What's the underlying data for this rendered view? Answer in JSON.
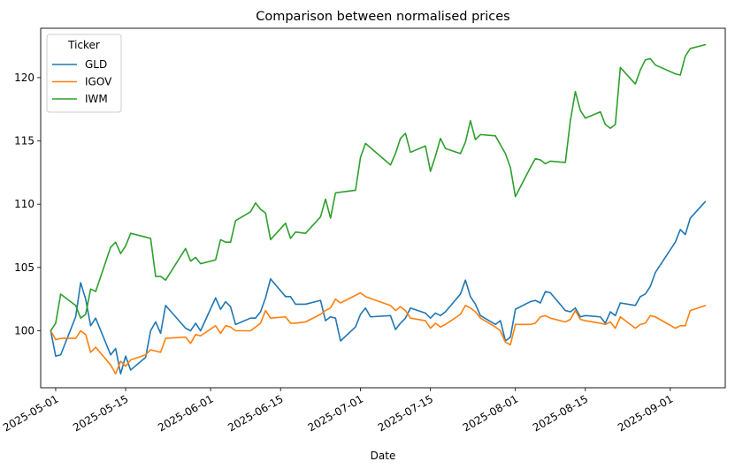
{
  "chart_data": {
    "type": "line",
    "title": "Comparison between normalised prices",
    "xlabel": "Date",
    "ylabel": "",
    "ylim": [
      95.5,
      123.9
    ],
    "xlim": [
      "2025-04-28",
      "2025-09-12"
    ],
    "yticks": [
      100,
      105,
      110,
      115,
      120
    ],
    "xticks": [
      "2025-05-01",
      "2025-05-15",
      "2025-06-01",
      "2025-06-15",
      "2025-07-01",
      "2025-07-15",
      "2025-08-01",
      "2025-08-15",
      "2025-09-01"
    ],
    "grid": false,
    "legend": {
      "title": "Ticker",
      "position": "upper-left"
    },
    "series": [
      {
        "name": "GLD",
        "color": "#1f77b4",
        "points": [
          [
            "2025-04-30",
            100.0
          ],
          [
            "2025-05-01",
            98.0
          ],
          [
            "2025-05-02",
            98.1
          ],
          [
            "2025-05-05",
            101.1
          ],
          [
            "2025-05-06",
            103.8
          ],
          [
            "2025-05-07",
            102.5
          ],
          [
            "2025-05-08",
            100.4
          ],
          [
            "2025-05-09",
            101.0
          ],
          [
            "2025-05-12",
            98.1
          ],
          [
            "2025-05-13",
            98.6
          ],
          [
            "2025-05-14",
            96.6
          ],
          [
            "2025-05-15",
            98.0
          ],
          [
            "2025-05-16",
            96.9
          ],
          [
            "2025-05-19",
            97.9
          ],
          [
            "2025-05-20",
            100.0
          ],
          [
            "2025-05-21",
            100.7
          ],
          [
            "2025-05-22",
            99.8
          ],
          [
            "2025-05-23",
            102.0
          ],
          [
            "2025-05-27",
            100.2
          ],
          [
            "2025-05-28",
            100.0
          ],
          [
            "2025-05-29",
            100.6
          ],
          [
            "2025-05-30",
            100.0
          ],
          [
            "2025-06-02",
            102.6
          ],
          [
            "2025-06-03",
            101.7
          ],
          [
            "2025-06-04",
            102.3
          ],
          [
            "2025-06-05",
            101.9
          ],
          [
            "2025-06-06",
            100.5
          ],
          [
            "2025-06-09",
            101.0
          ],
          [
            "2025-06-10",
            101.0
          ],
          [
            "2025-06-11",
            101.5
          ],
          [
            "2025-06-12",
            102.6
          ],
          [
            "2025-06-13",
            104.1
          ],
          [
            "2025-06-16",
            102.7
          ],
          [
            "2025-06-17",
            102.7
          ],
          [
            "2025-06-18",
            102.1
          ],
          [
            "2025-06-20",
            102.1
          ],
          [
            "2025-06-23",
            102.4
          ],
          [
            "2025-06-24",
            100.8
          ],
          [
            "2025-06-25",
            101.1
          ],
          [
            "2025-06-26",
            101.0
          ],
          [
            "2025-06-27",
            99.2
          ],
          [
            "2025-06-30",
            100.3
          ],
          [
            "2025-07-01",
            101.3
          ],
          [
            "2025-07-02",
            101.8
          ],
          [
            "2025-07-03",
            101.1
          ],
          [
            "2025-07-07",
            101.2
          ],
          [
            "2025-07-08",
            100.1
          ],
          [
            "2025-07-09",
            100.6
          ],
          [
            "2025-07-10",
            101.0
          ],
          [
            "2025-07-11",
            101.8
          ],
          [
            "2025-07-14",
            101.4
          ],
          [
            "2025-07-15",
            101.0
          ],
          [
            "2025-07-16",
            101.4
          ],
          [
            "2025-07-17",
            101.2
          ],
          [
            "2025-07-18",
            101.5
          ],
          [
            "2025-07-21",
            102.9
          ],
          [
            "2025-07-22",
            104.0
          ],
          [
            "2025-07-23",
            102.7
          ],
          [
            "2025-07-24",
            102.1
          ],
          [
            "2025-07-25",
            101.2
          ],
          [
            "2025-07-28",
            100.5
          ],
          [
            "2025-07-29",
            100.8
          ],
          [
            "2025-07-30",
            99.2
          ],
          [
            "2025-07-31",
            99.5
          ],
          [
            "2025-08-01",
            101.7
          ],
          [
            "2025-08-04",
            102.3
          ],
          [
            "2025-08-05",
            102.4
          ],
          [
            "2025-08-06",
            102.2
          ],
          [
            "2025-08-07",
            103.1
          ],
          [
            "2025-08-08",
            103.0
          ],
          [
            "2025-08-11",
            101.6
          ],
          [
            "2025-08-12",
            101.5
          ],
          [
            "2025-08-13",
            101.8
          ],
          [
            "2025-08-14",
            101.1
          ],
          [
            "2025-08-15",
            101.2
          ],
          [
            "2025-08-18",
            101.1
          ],
          [
            "2025-08-19",
            100.6
          ],
          [
            "2025-08-20",
            101.5
          ],
          [
            "2025-08-21",
            101.2
          ],
          [
            "2025-08-22",
            102.2
          ],
          [
            "2025-08-25",
            102.0
          ],
          [
            "2025-08-26",
            102.7
          ],
          [
            "2025-08-27",
            102.9
          ],
          [
            "2025-08-28",
            103.5
          ],
          [
            "2025-08-29",
            104.6
          ],
          [
            "2025-09-02",
            107.0
          ],
          [
            "2025-09-03",
            108.0
          ],
          [
            "2025-09-04",
            107.6
          ],
          [
            "2025-09-05",
            108.9
          ],
          [
            "2025-09-08",
            110.2
          ]
        ]
      },
      {
        "name": "IGOV",
        "color": "#ff7f0e",
        "points": [
          [
            "2025-04-30",
            100.0
          ],
          [
            "2025-05-01",
            99.3
          ],
          [
            "2025-05-02",
            99.4
          ],
          [
            "2025-05-05",
            99.4
          ],
          [
            "2025-05-06",
            100.0
          ],
          [
            "2025-05-07",
            99.7
          ],
          [
            "2025-05-08",
            98.3
          ],
          [
            "2025-05-09",
            98.7
          ],
          [
            "2025-05-12",
            97.3
          ],
          [
            "2025-05-13",
            96.6
          ],
          [
            "2025-05-14",
            97.6
          ],
          [
            "2025-05-15",
            97.2
          ],
          [
            "2025-05-16",
            97.7
          ],
          [
            "2025-05-19",
            98.1
          ],
          [
            "2025-05-20",
            98.5
          ],
          [
            "2025-05-22",
            98.3
          ],
          [
            "2025-05-23",
            99.4
          ],
          [
            "2025-05-27",
            99.5
          ],
          [
            "2025-05-28",
            99.0
          ],
          [
            "2025-05-29",
            99.7
          ],
          [
            "2025-05-30",
            99.6
          ],
          [
            "2025-06-02",
            100.4
          ],
          [
            "2025-06-03",
            99.8
          ],
          [
            "2025-06-04",
            100.4
          ],
          [
            "2025-06-05",
            100.3
          ],
          [
            "2025-06-06",
            100.0
          ],
          [
            "2025-06-09",
            100.0
          ],
          [
            "2025-06-10",
            100.3
          ],
          [
            "2025-06-11",
            100.6
          ],
          [
            "2025-06-12",
            101.6
          ],
          [
            "2025-06-13",
            101.0
          ],
          [
            "2025-06-16",
            101.1
          ],
          [
            "2025-06-17",
            100.6
          ],
          [
            "2025-06-18",
            100.6
          ],
          [
            "2025-06-20",
            100.7
          ],
          [
            "2025-06-23",
            101.3
          ],
          [
            "2025-06-24",
            101.6
          ],
          [
            "2025-06-25",
            101.8
          ],
          [
            "2025-06-26",
            102.5
          ],
          [
            "2025-06-27",
            102.2
          ],
          [
            "2025-06-30",
            102.8
          ],
          [
            "2025-07-01",
            103.0
          ],
          [
            "2025-07-02",
            102.7
          ],
          [
            "2025-07-07",
            102.0
          ],
          [
            "2025-07-08",
            101.6
          ],
          [
            "2025-07-09",
            101.9
          ],
          [
            "2025-07-10",
            101.6
          ],
          [
            "2025-07-11",
            101.0
          ],
          [
            "2025-07-14",
            100.8
          ],
          [
            "2025-07-15",
            100.2
          ],
          [
            "2025-07-16",
            100.6
          ],
          [
            "2025-07-17",
            100.3
          ],
          [
            "2025-07-18",
            100.5
          ],
          [
            "2025-07-21",
            101.3
          ],
          [
            "2025-07-22",
            102.0
          ],
          [
            "2025-07-23",
            101.8
          ],
          [
            "2025-07-24",
            101.5
          ],
          [
            "2025-07-25",
            101.0
          ],
          [
            "2025-07-28",
            100.3
          ],
          [
            "2025-07-29",
            100.0
          ],
          [
            "2025-07-30",
            99.1
          ],
          [
            "2025-07-31",
            98.9
          ],
          [
            "2025-08-01",
            100.5
          ],
          [
            "2025-08-04",
            100.5
          ],
          [
            "2025-08-05",
            100.6
          ],
          [
            "2025-08-06",
            101.1
          ],
          [
            "2025-08-07",
            101.2
          ],
          [
            "2025-08-08",
            101.0
          ],
          [
            "2025-08-11",
            100.7
          ],
          [
            "2025-08-12",
            100.9
          ],
          [
            "2025-08-13",
            101.6
          ],
          [
            "2025-08-14",
            100.9
          ],
          [
            "2025-08-15",
            100.8
          ],
          [
            "2025-08-18",
            100.6
          ],
          [
            "2025-08-19",
            100.5
          ],
          [
            "2025-08-20",
            100.7
          ],
          [
            "2025-08-21",
            100.2
          ],
          [
            "2025-08-22",
            101.1
          ],
          [
            "2025-08-25",
            100.2
          ],
          [
            "2025-08-26",
            100.5
          ],
          [
            "2025-08-27",
            100.6
          ],
          [
            "2025-08-28",
            101.2
          ],
          [
            "2025-08-29",
            101.1
          ],
          [
            "2025-09-02",
            100.2
          ],
          [
            "2025-09-03",
            100.4
          ],
          [
            "2025-09-04",
            100.4
          ],
          [
            "2025-09-05",
            101.6
          ],
          [
            "2025-09-08",
            102.0
          ]
        ]
      },
      {
        "name": "IWM",
        "color": "#2ca02c",
        "points": [
          [
            "2025-04-30",
            100.0
          ],
          [
            "2025-05-01",
            100.6
          ],
          [
            "2025-05-02",
            102.9
          ],
          [
            "2025-05-05",
            102.0
          ],
          [
            "2025-05-06",
            101.0
          ],
          [
            "2025-05-07",
            101.3
          ],
          [
            "2025-05-08",
            103.3
          ],
          [
            "2025-05-09",
            103.1
          ],
          [
            "2025-05-12",
            106.6
          ],
          [
            "2025-05-13",
            107.0
          ],
          [
            "2025-05-14",
            106.1
          ],
          [
            "2025-05-15",
            106.7
          ],
          [
            "2025-05-16",
            107.7
          ],
          [
            "2025-05-19",
            107.4
          ],
          [
            "2025-05-20",
            107.3
          ],
          [
            "2025-05-21",
            104.3
          ],
          [
            "2025-05-22",
            104.3
          ],
          [
            "2025-05-23",
            104.0
          ],
          [
            "2025-05-27",
            106.5
          ],
          [
            "2025-05-28",
            105.5
          ],
          [
            "2025-05-29",
            105.8
          ],
          [
            "2025-05-30",
            105.3
          ],
          [
            "2025-06-02",
            105.6
          ],
          [
            "2025-06-03",
            107.2
          ],
          [
            "2025-06-04",
            107.0
          ],
          [
            "2025-06-05",
            107.0
          ],
          [
            "2025-06-06",
            108.7
          ],
          [
            "2025-06-09",
            109.4
          ],
          [
            "2025-06-10",
            110.1
          ],
          [
            "2025-06-11",
            109.6
          ],
          [
            "2025-06-12",
            109.3
          ],
          [
            "2025-06-13",
            107.2
          ],
          [
            "2025-06-16",
            108.5
          ],
          [
            "2025-06-17",
            107.3
          ],
          [
            "2025-06-18",
            107.8
          ],
          [
            "2025-06-20",
            107.7
          ],
          [
            "2025-06-23",
            109.0
          ],
          [
            "2025-06-24",
            110.4
          ],
          [
            "2025-06-25",
            108.9
          ],
          [
            "2025-06-26",
            110.9
          ],
          [
            "2025-06-30",
            111.1
          ],
          [
            "2025-07-01",
            113.7
          ],
          [
            "2025-07-02",
            114.8
          ],
          [
            "2025-07-07",
            113.1
          ],
          [
            "2025-07-08",
            114.0
          ],
          [
            "2025-07-09",
            115.2
          ],
          [
            "2025-07-10",
            115.6
          ],
          [
            "2025-07-11",
            114.1
          ],
          [
            "2025-07-14",
            114.6
          ],
          [
            "2025-07-15",
            112.6
          ],
          [
            "2025-07-16",
            113.8
          ],
          [
            "2025-07-17",
            115.2
          ],
          [
            "2025-07-18",
            114.4
          ],
          [
            "2025-07-21",
            114.0
          ],
          [
            "2025-07-22",
            114.9
          ],
          [
            "2025-07-23",
            116.6
          ],
          [
            "2025-07-24",
            115.1
          ],
          [
            "2025-07-25",
            115.5
          ],
          [
            "2025-07-28",
            115.4
          ],
          [
            "2025-07-29",
            114.7
          ],
          [
            "2025-07-30",
            114.0
          ],
          [
            "2025-07-31",
            112.9
          ],
          [
            "2025-08-01",
            110.6
          ],
          [
            "2025-08-04",
            112.9
          ],
          [
            "2025-08-05",
            113.6
          ],
          [
            "2025-08-06",
            113.5
          ],
          [
            "2025-08-07",
            113.2
          ],
          [
            "2025-08-08",
            113.4
          ],
          [
            "2025-08-11",
            113.3
          ],
          [
            "2025-08-12",
            116.6
          ],
          [
            "2025-08-13",
            118.9
          ],
          [
            "2025-08-14",
            117.4
          ],
          [
            "2025-08-15",
            116.8
          ],
          [
            "2025-08-18",
            117.3
          ],
          [
            "2025-08-19",
            116.3
          ],
          [
            "2025-08-20",
            116.0
          ],
          [
            "2025-08-21",
            116.3
          ],
          [
            "2025-08-22",
            120.8
          ],
          [
            "2025-08-25",
            119.5
          ],
          [
            "2025-08-26",
            120.6
          ],
          [
            "2025-08-27",
            121.4
          ],
          [
            "2025-08-28",
            121.5
          ],
          [
            "2025-08-29",
            121.0
          ],
          [
            "2025-09-02",
            120.3
          ],
          [
            "2025-09-03",
            120.2
          ],
          [
            "2025-09-04",
            121.7
          ],
          [
            "2025-09-05",
            122.3
          ],
          [
            "2025-09-08",
            122.6
          ]
        ]
      }
    ]
  }
}
